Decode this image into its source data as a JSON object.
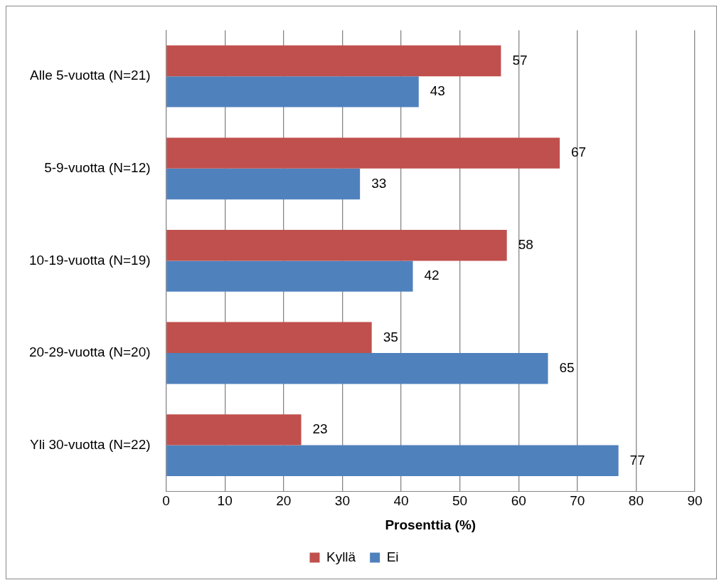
{
  "chart_data": {
    "type": "bar",
    "orientation": "horizontal",
    "xlabel": "Prosenttia (%)",
    "categories": [
      "Alle 5-vuotta (N=21)",
      "5-9-vuotta (N=12)",
      "10-19-vuotta (N=19)",
      "20-29-vuotta (N=20)",
      "Yli 30-vuotta (N=22)"
    ],
    "series": [
      {
        "name": "Kyllä",
        "color": "#c0504d",
        "values": [
          57,
          67,
          58,
          35,
          23
        ]
      },
      {
        "name": "Ei",
        "color": "#4f81bd",
        "values": [
          43,
          33,
          42,
          65,
          77
        ]
      }
    ],
    "xlim": [
      0,
      90
    ],
    "xticks": [
      0,
      10,
      20,
      30,
      40,
      50,
      60,
      70,
      80,
      90
    ],
    "grid": "x",
    "legend": "bottom",
    "data_labels": true
  }
}
